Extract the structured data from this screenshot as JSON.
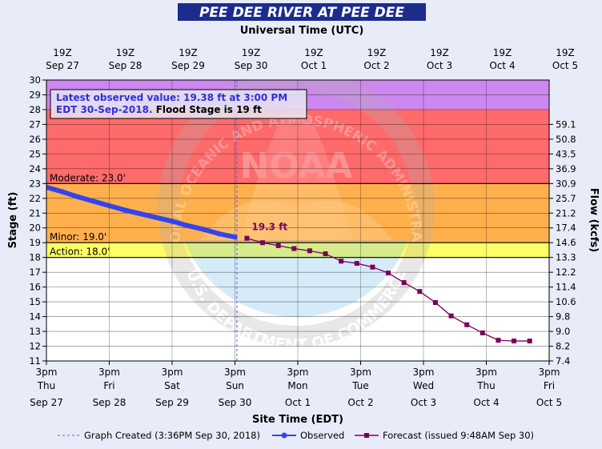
{
  "chart_data": {
    "type": "line",
    "title": "PEE DEE RIVER AT PEE DEE",
    "top_axis_title": "Universal Time (UTC)",
    "xlabel": "Site Time (EDT)",
    "ylabel": "Stage (ft)",
    "ylabel_right": "Flow (kcfs)",
    "ylim": [
      11,
      30
    ],
    "y_ticks": [
      11,
      12,
      13,
      14,
      15,
      16,
      17,
      18,
      19,
      20,
      21,
      22,
      23,
      24,
      25,
      26,
      27,
      28,
      29,
      30
    ],
    "x_range_days": [
      "Sep 27 3pm",
      "Oct 5 3pm"
    ],
    "bottom_ticks": [
      {
        "line1": "3pm",
        "line2": "Thu",
        "line3": "Sep 27"
      },
      {
        "line1": "3pm",
        "line2": "Fri",
        "line3": "Sep 28"
      },
      {
        "line1": "3pm",
        "line2": "Sat",
        "line3": "Sep 29"
      },
      {
        "line1": "3pm",
        "line2": "Sun",
        "line3": "Sep 30"
      },
      {
        "line1": "3pm",
        "line2": "Mon",
        "line3": "Oct 1"
      },
      {
        "line1": "3pm",
        "line2": "Tue",
        "line3": "Oct 2"
      },
      {
        "line1": "3pm",
        "line2": "Wed",
        "line3": "Oct 3"
      },
      {
        "line1": "3pm",
        "line2": "Thu",
        "line3": "Oct 4"
      },
      {
        "line1": "3pm",
        "line2": "Fri",
        "line3": "Oct 5"
      }
    ],
    "top_ticks": [
      {
        "line1": "19Z",
        "line2": "Sep 27"
      },
      {
        "line1": "19Z",
        "line2": "Sep 28"
      },
      {
        "line1": "19Z",
        "line2": "Sep 29"
      },
      {
        "line1": "19Z",
        "line2": "Sep 30"
      },
      {
        "line1": "19Z",
        "line2": "Oct 1"
      },
      {
        "line1": "19Z",
        "line2": "Oct 2"
      },
      {
        "line1": "19Z",
        "line2": "Oct 3"
      },
      {
        "line1": "19Z",
        "line2": "Oct 4"
      },
      {
        "line1": "19Z",
        "line2": "Oct 5"
      }
    ],
    "flow_ticks": [
      {
        "stage": 11.0,
        "label": "7.4"
      },
      {
        "stage": 12.0,
        "label": "8.2"
      },
      {
        "stage": 13.0,
        "label": "9.0"
      },
      {
        "stage": 14.0,
        "label": "9.8"
      },
      {
        "stage": 15.0,
        "label": "10.6"
      },
      {
        "stage": 16.0,
        "label": "11.4"
      },
      {
        "stage": 17.0,
        "label": "12.2"
      },
      {
        "stage": 18.0,
        "label": "13.3"
      },
      {
        "stage": 19.0,
        "label": "14.6"
      },
      {
        "stage": 20.0,
        "label": "17.4"
      },
      {
        "stage": 21.0,
        "label": "21.2"
      },
      {
        "stage": 22.0,
        "label": "25.7"
      },
      {
        "stage": 23.0,
        "label": "30.9"
      },
      {
        "stage": 24.0,
        "label": "36.9"
      },
      {
        "stage": 25.0,
        "label": "43.5"
      },
      {
        "stage": 26.0,
        "label": "50.8"
      },
      {
        "stage": 27.0,
        "label": "59.1"
      }
    ],
    "bands": [
      {
        "name": "Major",
        "from": 28,
        "to": 30,
        "color": "#cc88ee"
      },
      {
        "name": "Moderate",
        "from": 23,
        "to": 28,
        "color": "#ff6a6a"
      },
      {
        "name": "Minor",
        "from": 19,
        "to": 23,
        "color": "#ffb04c"
      },
      {
        "name": "Action",
        "from": 18,
        "to": 19,
        "color": "#ffff66"
      },
      {
        "name": "Normal",
        "from": 11,
        "to": 18,
        "color": "#ffffff"
      }
    ],
    "thresholds": [
      {
        "label": "Moderate: 23.0'",
        "value": 23
      },
      {
        "label": "Minor: 19.0'",
        "value": 19
      },
      {
        "label": "Action: 18.0'",
        "value": 18
      }
    ],
    "annotation": {
      "line1": "Latest observed value: 19.38 ft at 3:00 PM",
      "line2_blue": "EDT 30-Sep-2018.",
      "line2_black": " Flood Stage is 19 ft"
    },
    "forecast_label": "19.3 ft",
    "now_day": 3.03,
    "series": [
      {
        "name": "Observed",
        "color": "#3344ee",
        "x": [
          0,
          0.25,
          0.5,
          0.75,
          1.0,
          1.25,
          1.5,
          1.75,
          2.0,
          2.25,
          2.5,
          2.75,
          3.0
        ],
        "y": [
          22.75,
          22.45,
          22.1,
          21.8,
          21.5,
          21.2,
          20.95,
          20.7,
          20.45,
          20.15,
          19.9,
          19.6,
          19.38
        ]
      },
      {
        "name": "Forecast",
        "color": "#7a005a",
        "x": [
          3.19,
          3.44,
          3.69,
          3.94,
          4.19,
          4.44,
          4.69,
          4.94,
          5.19,
          5.44,
          5.69,
          5.94,
          6.19,
          6.44,
          6.69,
          6.94,
          7.19,
          7.44,
          7.69
        ],
        "y": [
          19.3,
          19.0,
          18.8,
          18.6,
          18.45,
          18.25,
          17.75,
          17.6,
          17.35,
          16.95,
          16.3,
          15.7,
          14.95,
          14.05,
          13.45,
          12.9,
          12.4,
          12.35,
          12.35
        ]
      }
    ],
    "legend": {
      "created": "Graph Created (3:36PM Sep 30, 2018)",
      "observed": "Observed",
      "forecast": "Forecast (issued 9:48AM Sep 30)"
    },
    "watermark": [
      "NATIONAL OCEANIC AND ATMOSPHERIC ADMINISTRATION",
      "NOAA",
      "U.S. DEPARTMENT OF COMMERCE"
    ],
    "colors": {
      "background": "#e8ecf8",
      "title_bar": "#1c2c8c",
      "observed": "#3344ee",
      "forecast": "#7a005a",
      "now_line": "#6a5acd"
    }
  }
}
